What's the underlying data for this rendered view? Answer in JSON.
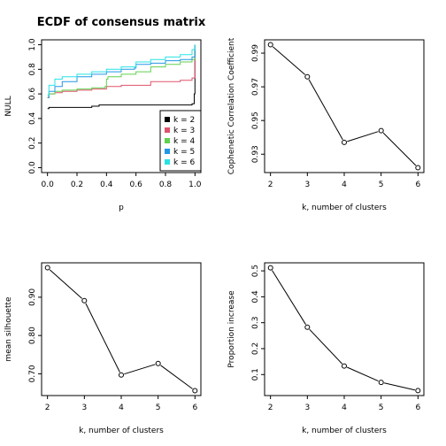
{
  "chart_data": [
    {
      "type": "line",
      "subtype": "ecdf",
      "title": "ECDF of consensus matrix",
      "xlabel": "p",
      "ylabel": "NULL",
      "xlim": [
        0,
        1
      ],
      "ylim": [
        0,
        1
      ],
      "xticks": [
        "0.0",
        "0.2",
        "0.4",
        "0.6",
        "0.8",
        "1.0"
      ],
      "yticks": [
        "0.0",
        "0.2",
        "0.4",
        "0.6",
        "0.8",
        "1.0"
      ],
      "legend_position": "bottom-right",
      "series": [
        {
          "name": "k = 2",
          "color": "#000000",
          "x": [
            0,
            0.01,
            0.1,
            0.3,
            0.35,
            0.6,
            0.8,
            0.98,
            0.995,
            1
          ],
          "y": [
            0.48,
            0.49,
            0.49,
            0.5,
            0.51,
            0.51,
            0.51,
            0.52,
            0.6,
            1.0
          ]
        },
        {
          "name": "k = 3",
          "color": "#DF536B",
          "x": [
            0,
            0.01,
            0.05,
            0.1,
            0.2,
            0.3,
            0.4,
            0.45,
            0.5,
            0.6,
            0.7,
            0.8,
            0.9,
            0.98,
            1
          ],
          "y": [
            0.57,
            0.6,
            0.61,
            0.62,
            0.63,
            0.64,
            0.66,
            0.66,
            0.67,
            0.67,
            0.7,
            0.7,
            0.71,
            0.73,
            1.0
          ]
        },
        {
          "name": "k = 4",
          "color": "#61D04F",
          "x": [
            0,
            0.01,
            0.05,
            0.1,
            0.2,
            0.3,
            0.39,
            0.4,
            0.41,
            0.5,
            0.6,
            0.7,
            0.8,
            0.9,
            0.98,
            1
          ],
          "y": [
            0.57,
            0.6,
            0.62,
            0.63,
            0.64,
            0.65,
            0.66,
            0.72,
            0.74,
            0.76,
            0.78,
            0.82,
            0.84,
            0.86,
            0.88,
            1.0
          ]
        },
        {
          "name": "k = 5",
          "color": "#2297E6",
          "x": [
            0,
            0.01,
            0.05,
            0.1,
            0.2,
            0.3,
            0.4,
            0.5,
            0.59,
            0.6,
            0.7,
            0.8,
            0.9,
            0.98,
            1
          ],
          "y": [
            0.57,
            0.62,
            0.66,
            0.7,
            0.74,
            0.76,
            0.78,
            0.8,
            0.81,
            0.84,
            0.85,
            0.87,
            0.88,
            0.9,
            1.0
          ]
        },
        {
          "name": "k = 6",
          "color": "#28E2E5",
          "x": [
            0,
            0.01,
            0.05,
            0.1,
            0.2,
            0.3,
            0.4,
            0.5,
            0.6,
            0.7,
            0.8,
            0.9,
            0.98,
            1
          ],
          "y": [
            0.59,
            0.67,
            0.72,
            0.74,
            0.76,
            0.78,
            0.8,
            0.82,
            0.86,
            0.88,
            0.9,
            0.92,
            0.96,
            1.0
          ]
        }
      ]
    },
    {
      "type": "line",
      "xlabel": "k, number of clusters",
      "ylabel": "Cophenetic Correlation Coefficient",
      "x": [
        2,
        3,
        4,
        5,
        6
      ],
      "y": [
        0.995,
        0.976,
        0.937,
        0.944,
        0.922
      ],
      "xlim": [
        1.84,
        6.16
      ],
      "ylim": [
        0.9191,
        0.9979
      ],
      "xticks": [
        "2",
        "3",
        "4",
        "5",
        "6"
      ],
      "yticks": [
        "0.93",
        "0.95",
        "0.97",
        "0.99"
      ],
      "ytick_values": [
        0.93,
        0.95,
        0.97,
        0.99
      ]
    },
    {
      "type": "line",
      "xlabel": "k, number of clusters",
      "ylabel": "mean silhouette",
      "x": [
        2,
        3,
        4,
        5,
        6
      ],
      "y": [
        0.977,
        0.891,
        0.697,
        0.727,
        0.656
      ],
      "xlim": [
        1.84,
        6.16
      ],
      "ylim": [
        0.6432,
        0.9898
      ],
      "xticks": [
        "2",
        "3",
        "4",
        "5",
        "6"
      ],
      "yticks": [
        "0.70",
        "0.80",
        "0.90"
      ],
      "ytick_values": [
        0.7,
        0.8,
        0.9
      ]
    },
    {
      "type": "line",
      "xlabel": "k, number of clusters",
      "ylabel": "Proportion increase",
      "x": [
        2,
        3,
        4,
        5,
        6
      ],
      "y": [
        0.512,
        0.283,
        0.133,
        0.07,
        0.038
      ],
      "xlim": [
        1.84,
        6.16
      ],
      "ylim": [
        0.019,
        0.531
      ],
      "xticks": [
        "2",
        "3",
        "4",
        "5",
        "6"
      ],
      "yticks": [
        "0.1",
        "0.2",
        "0.3",
        "0.4",
        "0.5"
      ],
      "ytick_values": [
        0.1,
        0.2,
        0.3,
        0.4,
        0.5
      ]
    }
  ]
}
